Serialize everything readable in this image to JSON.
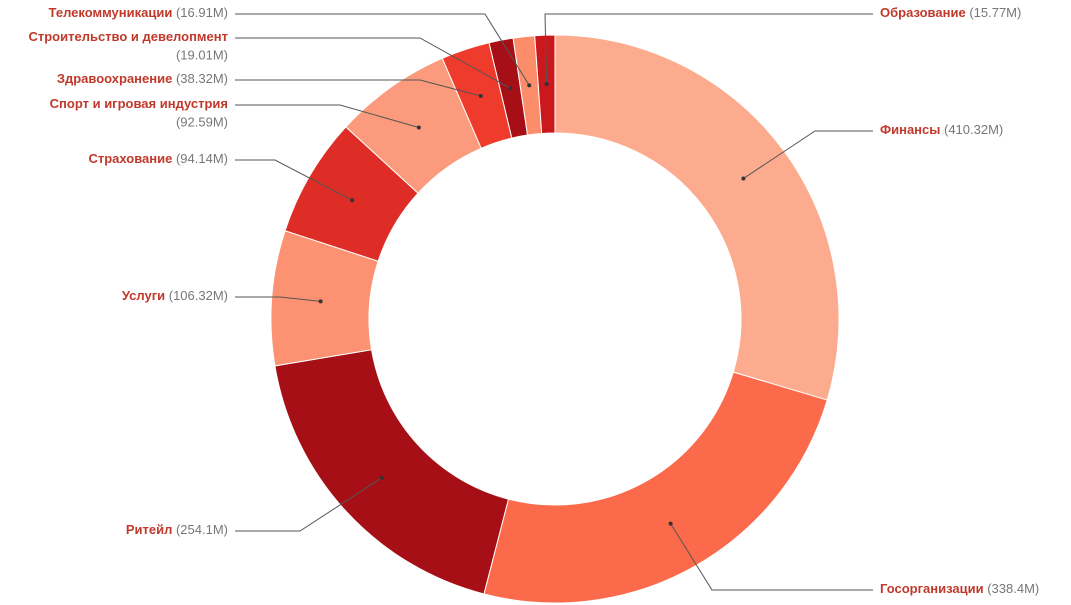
{
  "chart_data": {
    "type": "pie",
    "categories": [
      "Финансы",
      "Госорганизации",
      "Ритейл",
      "Услуги",
      "Страхование",
      "Спорт и игровая индустрия",
      "Здравоохранение",
      "Строительство и девелопмент",
      "Телекоммуникации",
      "Образование"
    ],
    "values": [
      410.32,
      338.4,
      254.1,
      106.32,
      94.14,
      92.59,
      38.32,
      19.01,
      16.91,
      15.77
    ],
    "value_labels": [
      "(410.32M)",
      "(338.4M)",
      "(254.1M)",
      "(106.32M)",
      "(94.14M)",
      "(92.59M)",
      "(38.32M)",
      "(19.01M)",
      "(16.91M)",
      "(15.77M)"
    ],
    "colors": [
      "#fcab8e",
      "#fb6a4a",
      "#a50f15",
      "#fc9272",
      "#de2d26",
      "#fb9a7c",
      "#ef3b2c",
      "#a50f15",
      "#fc8d6b",
      "#cb181d"
    ]
  }
}
